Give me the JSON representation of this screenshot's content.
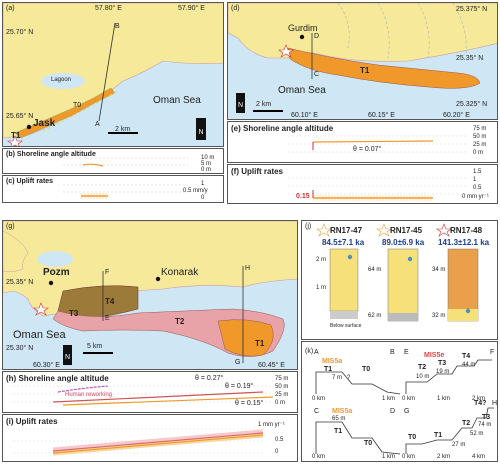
{
  "panel_a": {
    "letter": "(a)",
    "lon1": "57.80° E",
    "lon2": "57.90° E",
    "lat1": "25.70° N",
    "lat2": "25.65° N",
    "lagoon": "Lagoon",
    "sea": "Oman Sea",
    "town": "Jask",
    "t0": "T0",
    "t1": "T1",
    "pA": "A",
    "pB": "B",
    "scale": "2 km",
    "north": "N"
  },
  "panel_b": {
    "title": "(b) Shoreline angle altitude",
    "tick1": "10 m",
    "tick2": "5 m",
    "tick3": "0 m"
  },
  "panel_c": {
    "title": "(c) Uplift rates",
    "tick1": "1",
    "tick2": "0.5 mm/y",
    "tick3": "0"
  },
  "panel_d": {
    "letter": "(d)",
    "town": "Gurdim",
    "pC": "C",
    "pD": "D",
    "t1": "T1",
    "sea": "Oman Sea",
    "scale": "2 km",
    "north": "N",
    "lat1": "25.375° N",
    "lat2": "25.35° N",
    "lat3": "25.325° N",
    "lon1": "60.10° E",
    "lon2": "60.15° E",
    "lon3": "60.20° E"
  },
  "panel_e": {
    "title": "(e) Shoreline angle altitude",
    "theta": "θ = 0.07°",
    "ticks": [
      "75 m",
      "50 m",
      "25 m",
      "0 m"
    ]
  },
  "panel_f": {
    "title": "(f) Uplift rates",
    "value": "0.15",
    "ticks": [
      "1.5",
      "1",
      "0.5",
      "0 mm yr⁻¹"
    ]
  },
  "panel_g": {
    "letter": "(g)",
    "town1": "Pozm",
    "town2": "Konarak",
    "sea": "Oman Sea",
    "t1": "T1",
    "t2": "T2",
    "t3": "T3",
    "t4": "T4",
    "pE": "E",
    "pF": "F",
    "pG": "G",
    "pH": "H",
    "scale": "5 km",
    "north": "N",
    "lat1": "25.35° N",
    "lat2": "25.30° N",
    "lon1": "60.30° E",
    "lon2": "60.45° E"
  },
  "panel_h": {
    "title": "(h) Shoreline angle altitude",
    "theta1": "θ = 0.27°",
    "theta2": "θ = 0.19°",
    "theta3": "θ = 0.15°",
    "note": "Human reworking",
    "ticks": [
      "75 m",
      "50 m",
      "25 m",
      "0 m"
    ]
  },
  "panel_i": {
    "title": "(i) Uplift rates",
    "tick1": "1 mm yr⁻¹",
    "tick2": "0.5",
    "tick3": "0"
  },
  "panel_j": {
    "letter": "(j)",
    "samples": [
      {
        "name": "RN17-47",
        "age": "84.5±7.1 ka"
      },
      {
        "name": "RN17-45",
        "age": "89.0±6.9 ka"
      },
      {
        "name": "RN17-48",
        "age": "141.3±12.1 ka"
      }
    ],
    "y1": "2 m",
    "y2": "1 m",
    "y3": "64 m",
    "y4": "62 m",
    "y5": "34 m",
    "y6": "32 m",
    "below": "Below surface"
  },
  "panel_k": {
    "letter": "(k)",
    "miss5a": "MIS5a",
    "miss5e": "MIS5e",
    "ab": {
      "a": "A",
      "b": "B",
      "t1": "T1",
      "t0": "T0",
      "h": "7 m",
      "q": "?",
      "x0": "0 km",
      "x1": "1 km"
    },
    "ef": {
      "e": "E",
      "f": "F",
      "t2": "T2",
      "t3": "T3",
      "t4": "T4",
      "h1": "10 m",
      "h2": "19 m",
      "h3": "44 m",
      "x0": "0 km",
      "x1": "1 km",
      "x2": "2 km"
    },
    "cd": {
      "c": "C",
      "d": "D",
      "t1": "T1",
      "t0": "T0",
      "h": "65 m",
      "x0": "0 km",
      "x1": "1 km"
    },
    "gh": {
      "g": "G",
      "h": "H",
      "t0": "T0",
      "t1": "T1",
      "t2": "T2",
      "t3": "T3",
      "t4": "T4?",
      "h1": "27 m",
      "h2": "52 m",
      "h3": "74 m",
      "x0": "0 km",
      "x1": "2 km",
      "x2": "4 km"
    }
  }
}
